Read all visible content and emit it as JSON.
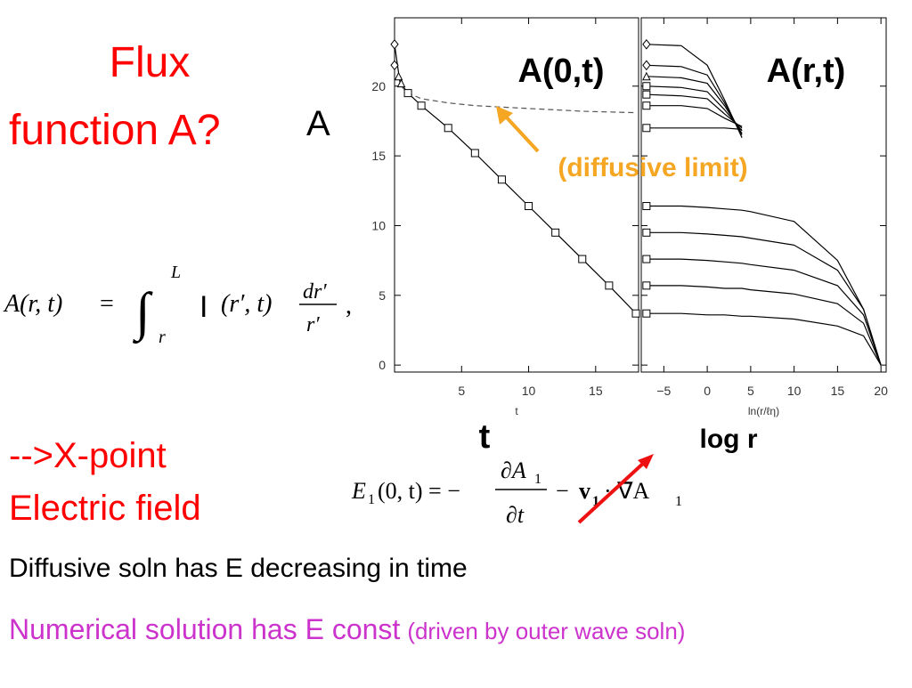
{
  "slide": {
    "title": "Flux function A?",
    "title_lines": [
      "Flux",
      "function A?"
    ],
    "a_label": "A",
    "equation_1": {
      "lhs": "A(r, t)",
      "eq": "=",
      "integral": "∫",
      "upper": "L",
      "lower": "r",
      "integrand": "I",
      "args": "(r′, t)",
      "num": "dr′",
      "den": "r′",
      "comma": ","
    },
    "xpoint_lines": [
      "-->X-point",
      "Electric field"
    ],
    "t_label": "t",
    "logr_label": "log r",
    "panel_left_label": "A(0,t)",
    "panel_right_label": "A(r,t)",
    "diffusive_label": "(diffusive limit)",
    "equation_2": {
      "e": "E",
      "e_sub": "1",
      "args": "(0, t) = −",
      "num": "∂A",
      "num_sub": "1",
      "den": "∂t",
      "minus": "−",
      "v": "v",
      "v_sub": "1",
      "grad": "· ∇A",
      "grad_sub": "1"
    },
    "line_1": "Diffusive soln has E decreasing in time",
    "line_2_main": "Numerical solution has E const",
    "line_2_note": "(driven by outer wave soln)"
  },
  "chart_data": [
    {
      "type": "line",
      "xlabel": "t",
      "xlim": [
        0,
        18.2
      ],
      "ylim": [
        -0.5,
        24.9
      ],
      "xticks": [
        5,
        10,
        15
      ],
      "yticks": [
        0,
        5,
        10,
        15,
        20
      ],
      "series": [
        {
          "x": [
            0,
            0.4,
            1,
            2,
            4,
            6,
            8,
            10,
            12,
            14,
            16,
            18,
            18.2
          ],
          "values": [
            23,
            20.3,
            19.5,
            18.6,
            17.0,
            15.2,
            13.3,
            11.4,
            9.5,
            7.6,
            5.7,
            3.7,
            3.7
          ],
          "color": "#000000",
          "dash": false,
          "line": true
        },
        {
          "x": [
            0.5,
            1,
            2,
            4,
            6,
            8,
            10,
            12,
            14,
            16,
            18
          ],
          "values": [
            20,
            19.5,
            19.1,
            18.8,
            18.6,
            18.5,
            18.4,
            18.3,
            18.2,
            18.15,
            18.1
          ],
          "color": "#555555",
          "dash": true,
          "line": true
        },
        {
          "x": [
            1,
            2,
            4,
            6,
            8,
            10,
            12,
            14,
            16,
            18
          ],
          "values": [
            19.5,
            18.6,
            17.0,
            15.2,
            13.3,
            11.4,
            9.5,
            7.6,
            5.7,
            3.7
          ],
          "color": "#000000",
          "line": false,
          "marker": "square"
        },
        {
          "x": [
            0,
            0
          ],
          "values": [
            23,
            21.5
          ],
          "color": "#000000",
          "line": false,
          "marker": "diamond"
        },
        {
          "x": [
            0.3,
            0.5
          ],
          "values": [
            20.7,
            20.2
          ],
          "color": "#000000",
          "line": false,
          "marker": "triangle"
        }
      ]
    },
    {
      "type": "line",
      "xlabel": "ln(r/ℓη)",
      "xlim": [
        -7.6,
        20.6
      ],
      "ylim": [
        -0.5,
        24.9
      ],
      "xticks": [
        {
          "value": -5,
          "label": "−5"
        },
        0,
        5,
        10,
        15,
        20
      ],
      "yticks": [
        0,
        5,
        10,
        15,
        20
      ],
      "x": [
        -7,
        -3,
        0,
        2,
        4,
        5,
        10,
        15,
        18,
        20
      ],
      "series": [
        {
          "values": [
            23,
            22.9,
            21.5,
            19,
            16.3,
            null,
            null,
            null,
            null,
            null
          ],
          "color": "#000000",
          "line": true
        },
        {
          "values": [
            21.5,
            21.4,
            20.8,
            18.8,
            16.5,
            null,
            null,
            null,
            null,
            null
          ],
          "color": "#000000",
          "line": true
        },
        {
          "values": [
            20.7,
            20.6,
            20.2,
            18.6,
            16.6,
            null,
            null,
            null,
            null,
            null
          ],
          "color": "#000000",
          "line": true
        },
        {
          "values": [
            20,
            19.9,
            19.6,
            18.3,
            16.8,
            null,
            null,
            null,
            null,
            null
          ],
          "color": "#000000",
          "line": true
        },
        {
          "values": [
            19.4,
            19.3,
            19.1,
            18.0,
            17.0,
            null,
            null,
            null,
            null,
            null
          ],
          "color": "#000000",
          "line": true
        },
        {
          "values": [
            18.6,
            18.6,
            18.4,
            17.7,
            17.1,
            null,
            null,
            null,
            null,
            null
          ],
          "color": "#000000",
          "line": true
        },
        {
          "values": [
            17,
            17,
            17,
            17,
            16.9,
            null,
            null,
            null,
            null,
            null
          ],
          "color": "#000000",
          "line": true
        },
        {
          "values": [
            11.4,
            11.4,
            11.3,
            11.2,
            11.1,
            11.0,
            10.3,
            7.5,
            4,
            0
          ],
          "color": "#000000",
          "line": true
        },
        {
          "values": [
            9.5,
            9.5,
            9.4,
            9.3,
            9.2,
            9.1,
            8.6,
            6.8,
            4,
            0
          ],
          "color": "#000000",
          "line": true
        },
        {
          "values": [
            7.6,
            7.6,
            7.5,
            7.4,
            7.3,
            7.2,
            6.8,
            5.7,
            3.6,
            0
          ],
          "color": "#000000",
          "line": true
        },
        {
          "values": [
            5.7,
            5.7,
            5.6,
            5.5,
            5.5,
            5.4,
            5.1,
            4.4,
            3,
            0
          ],
          "color": "#000000",
          "line": true
        },
        {
          "values": [
            3.7,
            3.7,
            3.6,
            3.6,
            3.5,
            3.5,
            3.3,
            2.8,
            2.1,
            0
          ],
          "color": "#000000",
          "line": true
        },
        {
          "x": [
            -7,
            -7,
            -7,
            -7,
            -7,
            -7,
            -7,
            -7,
            -7
          ],
          "values": [
            11.4,
            9.5,
            7.6,
            5.7,
            3.7,
            17,
            18.6,
            19.4,
            20
          ],
          "color": "#000000",
          "line": false,
          "marker": "square"
        },
        {
          "x": [
            -7,
            -7
          ],
          "values": [
            23,
            21.5
          ],
          "color": "#000000",
          "line": false,
          "marker": "diamond"
        },
        {
          "x": [
            -7
          ],
          "values": [
            20.7
          ],
          "color": "#000000",
          "line": false,
          "marker": "triangle"
        }
      ]
    }
  ]
}
